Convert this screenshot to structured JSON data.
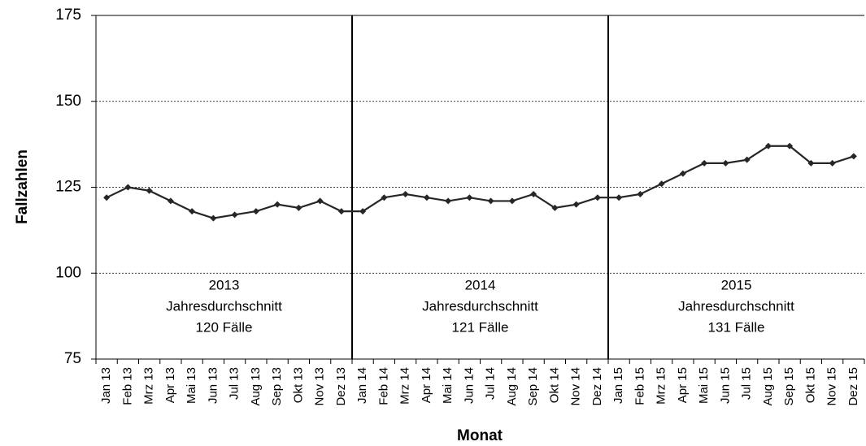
{
  "chart_data": {
    "type": "line",
    "x_label": "Monat",
    "y_label": "Fallzahlen",
    "categories": [
      "Jan 13",
      "Feb 13",
      "Mrz 13",
      "Apr 13",
      "Mai 13",
      "Jun 13",
      "Jul 13",
      "Aug 13",
      "Sep 13",
      "Okt 13",
      "Nov 13",
      "Dez 13",
      "Jan 14",
      "Feb 14",
      "Mrz 14",
      "Apr 14",
      "Mai 14",
      "Jun 14",
      "Jul 14",
      "Aug 14",
      "Sep 14",
      "Okt 14",
      "Nov 14",
      "Dez 14",
      "Jan 15",
      "Feb 15",
      "Mrz 15",
      "Apr 15",
      "Mai 15",
      "Jun 15",
      "Jul 15",
      "Aug 15",
      "Sep 15",
      "Okt 15",
      "Nov 15",
      "Dez 15"
    ],
    "values": [
      122,
      125,
      124,
      121,
      118,
      116,
      117,
      118,
      120,
      119,
      121,
      118,
      118,
      122,
      123,
      122,
      121,
      122,
      121,
      121,
      123,
      119,
      120,
      122,
      122,
      123,
      126,
      129,
      132,
      132,
      133,
      137,
      137,
      132,
      132,
      134
    ],
    "color": "#262626",
    "ylim": [
      75,
      175
    ],
    "yticks": [
      75,
      100,
      125,
      150,
      175
    ],
    "grid": true,
    "annotations": [
      {
        "lines": [
          "2013",
          "Jahresdurchschnitt",
          "120 Fälle"
        ]
      },
      {
        "lines": [
          "2014",
          "Jahresdurchschnitt",
          "121 Fälle"
        ]
      },
      {
        "lines": [
          "2015",
          "Jahresdurchschnitt",
          "131 Fälle"
        ]
      }
    ]
  }
}
